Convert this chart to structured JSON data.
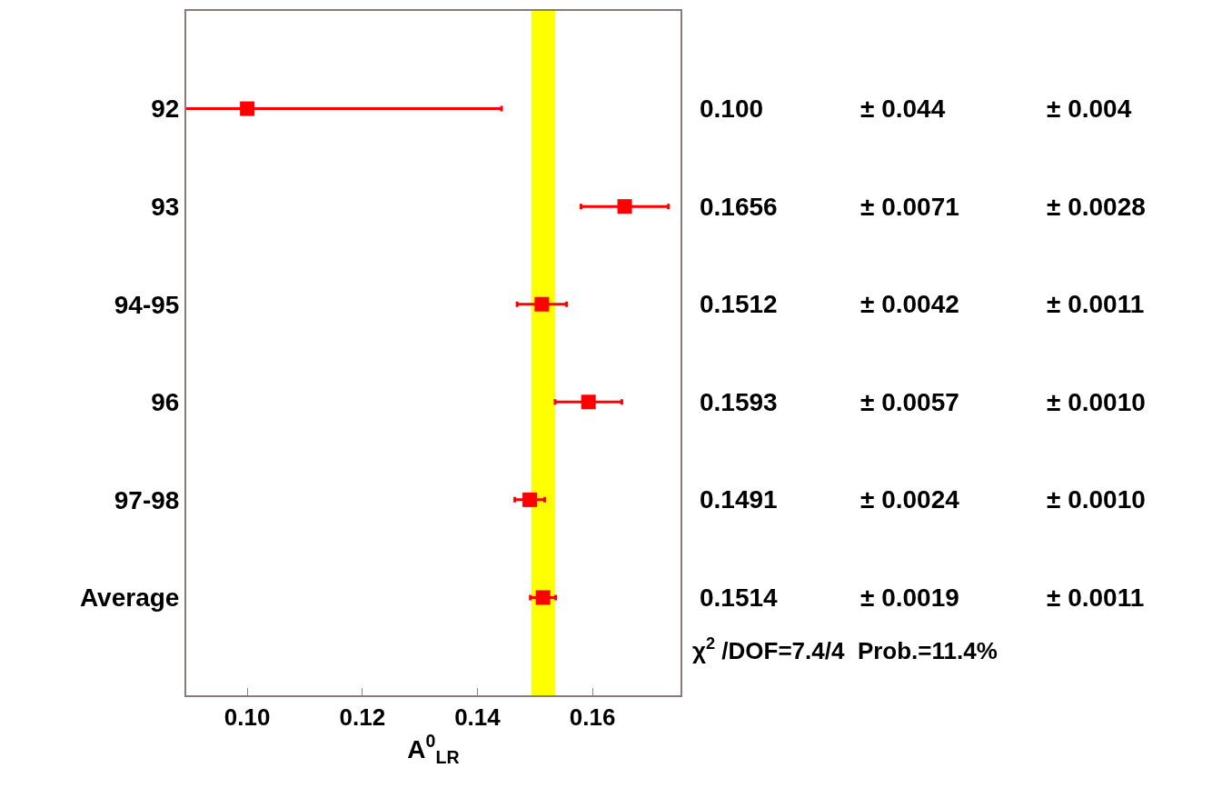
{
  "chart_data": {
    "type": "scatter",
    "orientation": "horizontal",
    "xlabel": "A$^{0}$$_{LR}$",
    "categories": [
      "92",
      "93",
      "94-95",
      "96",
      "97-98",
      "Average"
    ],
    "series": [
      {
        "color": "#ff0000",
        "values": [
          0.1,
          0.1656,
          0.1512,
          0.1593,
          0.1491,
          0.1514
        ],
        "errors": [
          0.0442,
          0.0076,
          0.0043,
          0.0058,
          0.0026,
          0.0022
        ]
      }
    ],
    "xlim": [
      0.0894,
      0.1753
    ],
    "xticks": [
      {
        "value": 0.1,
        "label": "0.10"
      },
      {
        "value": 0.12,
        "label": "0.12"
      },
      {
        "value": 0.14,
        "label": "0.14"
      },
      {
        "value": 0.16,
        "label": "0.16"
      }
    ],
    "bands": [
      {
        "axis": "x",
        "from": 0.1494,
        "to": 0.1535,
        "color": "#ffff00"
      }
    ],
    "marker": "square",
    "grid": false,
    "legend": false,
    "annotations": [
      "0.100",
      "± 0.044",
      "± 0.004",
      "0.1656",
      "± 0.0071",
      "± 0.0028",
      "0.1512",
      "± 0.0042",
      "± 0.0011",
      "0.1593",
      "± 0.0057",
      "± 0.0010",
      "0.1491",
      "± 0.0024",
      "± 0.0010",
      "0.1514",
      "± 0.0019",
      "± 0.0011",
      "χ$^{2}$ /DOF=7.4/4  Prob.=11.4%"
    ]
  }
}
